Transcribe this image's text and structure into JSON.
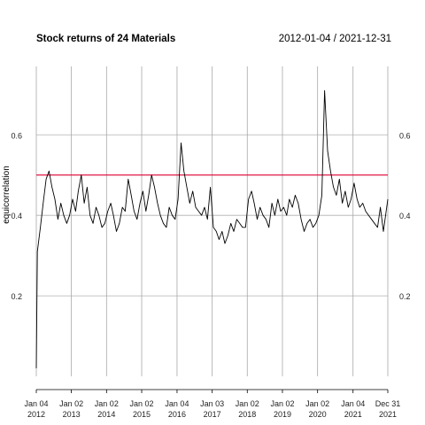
{
  "chart_data": {
    "type": "line",
    "title": "Stock returns of 24 Materials",
    "date_range": "2012-01-04 / 2021-12-31",
    "ylabel": "equicorrelation",
    "xlabel": "",
    "ylim": [
      0.0,
      0.77
    ],
    "y_ticks": [
      0.2,
      0.4,
      0.6
    ],
    "y_tick_labels": [
      "0.2",
      "0.4",
      "0.6"
    ],
    "reference_line": {
      "y": 0.5,
      "color": "#dd0033"
    },
    "x_ticks": [
      {
        "date": "2012-01-04",
        "line1": "Jan 04",
        "line2": "2012"
      },
      {
        "date": "2013-01-02",
        "line1": "Jan 02",
        "line2": "2013"
      },
      {
        "date": "2014-01-02",
        "line1": "Jan 02",
        "line2": "2014"
      },
      {
        "date": "2015-01-02",
        "line1": "Jan 02",
        "line2": "2015"
      },
      {
        "date": "2016-01-04",
        "line1": "Jan 04",
        "line2": "2016"
      },
      {
        "date": "2017-01-03",
        "line1": "Jan 03",
        "line2": "2017"
      },
      {
        "date": "2018-01-02",
        "line1": "Jan 02",
        "line2": "2018"
      },
      {
        "date": "2019-01-02",
        "line1": "Jan 02",
        "line2": "2019"
      },
      {
        "date": "2020-01-02",
        "line1": "Jan 02",
        "line2": "2020"
      },
      {
        "date": "2021-01-04",
        "line1": "Jan 04",
        "line2": "2021"
      },
      {
        "date": "2021-12-31",
        "line1": "Dec 31",
        "line2": "2021"
      }
    ],
    "grid": true,
    "series": [
      {
        "color": "#000000",
        "x": [
          "2012-01-04",
          "2012-01-15",
          "2012-02-15",
          "2012-03-20",
          "2012-04-15",
          "2012-05-15",
          "2012-06-15",
          "2012-07-15",
          "2012-08-15",
          "2012-09-15",
          "2012-10-15",
          "2012-11-15",
          "2012-12-15",
          "2013-01-15",
          "2013-02-15",
          "2013-03-15",
          "2013-04-15",
          "2013-05-15",
          "2013-06-15",
          "2013-07-15",
          "2013-08-15",
          "2013-09-15",
          "2013-10-15",
          "2013-11-15",
          "2013-12-15",
          "2014-01-15",
          "2014-02-15",
          "2014-03-15",
          "2014-04-15",
          "2014-05-15",
          "2014-06-15",
          "2014-07-15",
          "2014-08-15",
          "2014-09-15",
          "2014-10-15",
          "2014-11-15",
          "2014-12-15",
          "2015-01-15",
          "2015-02-15",
          "2015-03-15",
          "2015-04-15",
          "2015-05-15",
          "2015-06-15",
          "2015-07-15",
          "2015-08-15",
          "2015-09-15",
          "2015-10-15",
          "2015-11-15",
          "2015-12-15",
          "2016-01-15",
          "2016-02-15",
          "2016-03-15",
          "2016-04-15",
          "2016-05-15",
          "2016-06-15",
          "2016-07-15",
          "2016-08-15",
          "2016-09-15",
          "2016-10-15",
          "2016-11-15",
          "2016-12-15",
          "2017-01-15",
          "2017-02-15",
          "2017-03-15",
          "2017-04-15",
          "2017-05-15",
          "2017-06-15",
          "2017-07-15",
          "2017-08-15",
          "2017-09-15",
          "2017-10-15",
          "2017-11-15",
          "2017-12-15",
          "2018-01-15",
          "2018-02-15",
          "2018-03-15",
          "2018-04-15",
          "2018-05-15",
          "2018-06-15",
          "2018-07-15",
          "2018-08-15",
          "2018-09-15",
          "2018-10-15",
          "2018-11-15",
          "2018-12-15",
          "2019-01-15",
          "2019-02-15",
          "2019-03-15",
          "2019-04-15",
          "2019-05-15",
          "2019-06-15",
          "2019-07-15",
          "2019-08-15",
          "2019-09-15",
          "2019-10-15",
          "2019-11-15",
          "2019-12-15",
          "2020-01-15",
          "2020-02-15",
          "2020-03-15",
          "2020-04-15",
          "2020-05-15",
          "2020-06-15",
          "2020-07-15",
          "2020-08-15",
          "2020-09-15",
          "2020-10-15",
          "2020-11-15",
          "2020-12-15",
          "2021-01-15",
          "2021-02-15",
          "2021-03-15",
          "2021-04-15",
          "2021-05-15",
          "2021-06-15",
          "2021-07-15",
          "2021-08-15",
          "2021-09-15",
          "2021-10-15",
          "2021-11-15",
          "2021-12-31"
        ],
        "values": [
          0.02,
          0.31,
          0.37,
          0.44,
          0.49,
          0.51,
          0.47,
          0.44,
          0.39,
          0.43,
          0.4,
          0.38,
          0.4,
          0.44,
          0.41,
          0.46,
          0.5,
          0.43,
          0.47,
          0.4,
          0.38,
          0.42,
          0.4,
          0.37,
          0.38,
          0.41,
          0.43,
          0.4,
          0.36,
          0.38,
          0.42,
          0.41,
          0.49,
          0.45,
          0.41,
          0.39,
          0.43,
          0.46,
          0.41,
          0.45,
          0.5,
          0.47,
          0.43,
          0.4,
          0.38,
          0.37,
          0.42,
          0.4,
          0.39,
          0.44,
          0.58,
          0.51,
          0.47,
          0.43,
          0.46,
          0.42,
          0.41,
          0.4,
          0.42,
          0.39,
          0.47,
          0.37,
          0.36,
          0.34,
          0.36,
          0.33,
          0.35,
          0.38,
          0.36,
          0.39,
          0.38,
          0.37,
          0.37,
          0.44,
          0.46,
          0.43,
          0.39,
          0.42,
          0.4,
          0.39,
          0.37,
          0.43,
          0.4,
          0.44,
          0.41,
          0.42,
          0.4,
          0.44,
          0.42,
          0.45,
          0.43,
          0.39,
          0.36,
          0.38,
          0.39,
          0.37,
          0.38,
          0.4,
          0.45,
          0.71,
          0.56,
          0.51,
          0.47,
          0.45,
          0.49,
          0.43,
          0.46,
          0.42,
          0.44,
          0.48,
          0.44,
          0.42,
          0.43,
          0.41,
          0.4,
          0.39,
          0.38,
          0.37,
          0.42,
          0.36,
          0.44
        ]
      }
    ]
  }
}
